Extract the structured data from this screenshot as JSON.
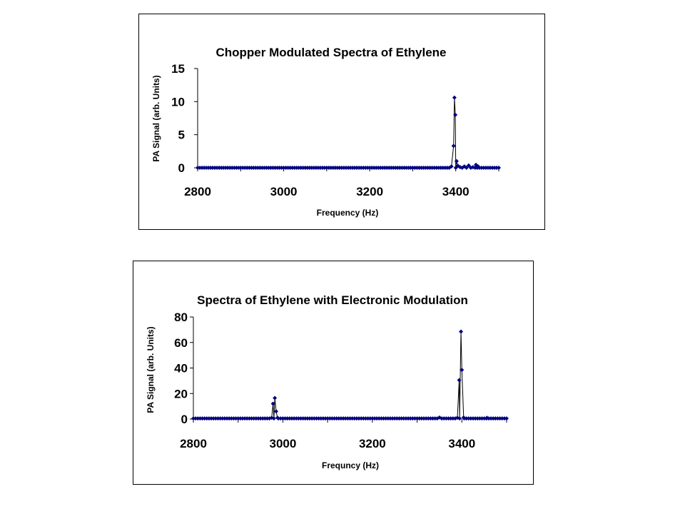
{
  "chart_data": [
    {
      "type": "line",
      "title": "Chopper Modulated Spectra of Ethylene",
      "xlabel": "Frequency (Hz)",
      "ylabel": "PA Signal (arb. Units)",
      "xlim": [
        2800,
        3500
      ],
      "ylim": [
        0,
        15
      ],
      "xticks": [
        2800,
        3000,
        3200,
        3400
      ],
      "yticks": [
        0,
        5,
        10,
        15
      ],
      "grid": false,
      "legend": "none",
      "marker_color": "#00007f",
      "line_color": "#000000",
      "baseline": {
        "x_start": 2800,
        "x_end": 3500,
        "step": 5,
        "y": 0
      },
      "series": [
        {
          "values": [
            [
              3390,
              0.2
            ],
            [
              3395,
              3.3
            ],
            [
              3397,
              10.6
            ],
            [
              3399,
              8.0
            ],
            [
              3402,
              1.0
            ],
            [
              3405,
              0.3
            ],
            [
              3410,
              0.1
            ],
            [
              3420,
              0.2
            ],
            [
              3430,
              0.35
            ],
            [
              3440,
              0.1
            ],
            [
              3447,
              0.45
            ],
            [
              3452,
              0.2
            ]
          ]
        }
      ]
    },
    {
      "type": "line",
      "title": "Spectra of Ethylene with Electronic Modulation",
      "xlabel": "Frequncy (Hz)",
      "ylabel": "PA Signal (arb. Units)",
      "xlim": [
        2800,
        3500
      ],
      "ylim": [
        0,
        80
      ],
      "xticks": [
        2800,
        3000,
        3200,
        3400
      ],
      "yticks": [
        0,
        20,
        40,
        60,
        80
      ],
      "grid": false,
      "legend": "none",
      "marker_color": "#00007f",
      "line_color": "#000000",
      "baseline": {
        "x_start": 2800,
        "x_end": 3500,
        "step": 5,
        "y": 0.5
      },
      "series": [
        {
          "values": [
            [
              2975,
              1.0
            ],
            [
              2978,
              12.0
            ],
            [
              2982,
              16.5
            ],
            [
              2985,
              6.0
            ],
            [
              2988,
              1.0
            ],
            [
              3350,
              1.2
            ],
            [
              3390,
              1.0
            ],
            [
              3394,
              30.5
            ],
            [
              3398,
              68.5
            ],
            [
              3400,
              38.5
            ],
            [
              3404,
              1.2
            ],
            [
              3456,
              1.0
            ]
          ]
        }
      ]
    }
  ]
}
